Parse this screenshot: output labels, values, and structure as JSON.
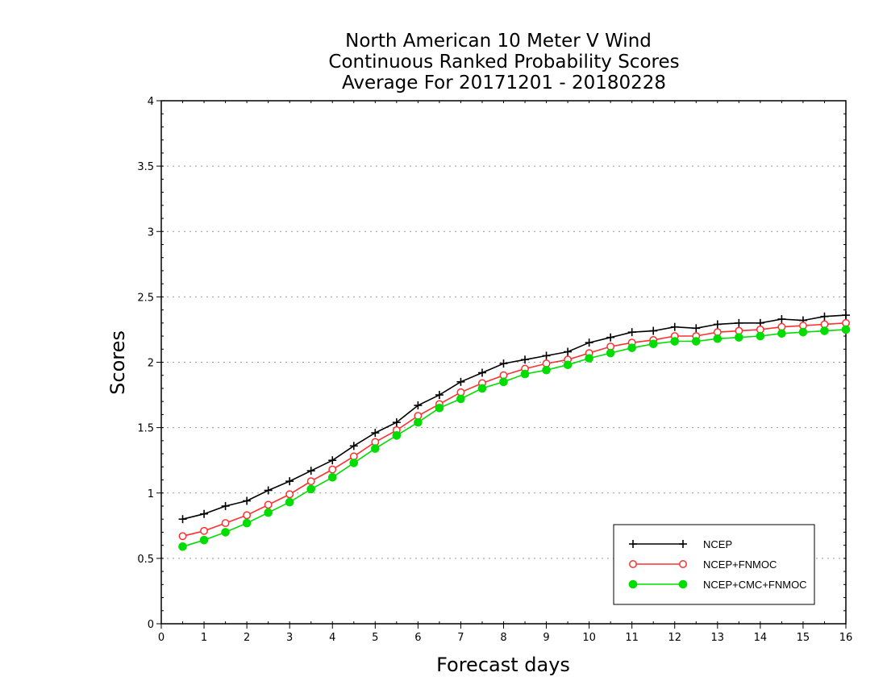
{
  "chart_data": {
    "type": "line",
    "title": [
      "North American 10 Meter V Wind",
      "Continuous Ranked Probability Scores",
      "Average For 20171201 - 20180228"
    ],
    "xlabel": "Forecast days",
    "ylabel": "Scores",
    "xlim": [
      0,
      16
    ],
    "ylim": [
      0,
      4
    ],
    "xticks": [
      "0",
      "1",
      "2",
      "3",
      "4",
      "5",
      "6",
      "7",
      "8",
      "9",
      "10",
      "11",
      "12",
      "13",
      "14",
      "15",
      "16"
    ],
    "yticks": [
      "0",
      "0.5",
      "1",
      "1.5",
      "2",
      "2.5",
      "3",
      "3.5",
      "4"
    ],
    "grid": "horizontal dotted",
    "legend_position": "bottom-right",
    "x": [
      0.5,
      1,
      1.5,
      2,
      2.5,
      3,
      3.5,
      4,
      4.5,
      5,
      5.5,
      6,
      6.5,
      7,
      7.5,
      8,
      8.5,
      9,
      9.5,
      10,
      10.5,
      11,
      11.5,
      12,
      12.5,
      13,
      13.5,
      14,
      14.5,
      15,
      15.5,
      16
    ],
    "series": [
      {
        "name": "NCEP",
        "color": "#000000",
        "marker": "plus",
        "values": [
          0.8,
          0.84,
          0.9,
          0.94,
          1.02,
          1.09,
          1.17,
          1.25,
          1.36,
          1.46,
          1.54,
          1.67,
          1.75,
          1.85,
          1.92,
          1.99,
          2.02,
          2.05,
          2.08,
          2.15,
          2.19,
          2.23,
          2.24,
          2.27,
          2.26,
          2.29,
          2.3,
          2.3,
          2.33,
          2.32,
          2.35,
          2.36
        ]
      },
      {
        "name": "NCEP+FNMOC",
        "color": "#ff3030",
        "marker": "open-circle",
        "values": [
          0.67,
          0.71,
          0.77,
          0.83,
          0.91,
          0.99,
          1.09,
          1.18,
          1.28,
          1.39,
          1.48,
          1.59,
          1.68,
          1.77,
          1.84,
          1.9,
          1.95,
          1.99,
          2.02,
          2.07,
          2.12,
          2.15,
          2.17,
          2.2,
          2.2,
          2.23,
          2.24,
          2.25,
          2.27,
          2.28,
          2.29,
          2.3
        ]
      },
      {
        "name": "NCEP+CMC+FNMOC",
        "color": "#00dd00",
        "marker": "filled-circle",
        "values": [
          0.59,
          0.64,
          0.7,
          0.77,
          0.85,
          0.93,
          1.03,
          1.12,
          1.23,
          1.34,
          1.44,
          1.54,
          1.65,
          1.72,
          1.8,
          1.85,
          1.91,
          1.94,
          1.98,
          2.03,
          2.07,
          2.11,
          2.14,
          2.16,
          2.16,
          2.18,
          2.19,
          2.2,
          2.22,
          2.23,
          2.24,
          2.25
        ]
      }
    ]
  }
}
